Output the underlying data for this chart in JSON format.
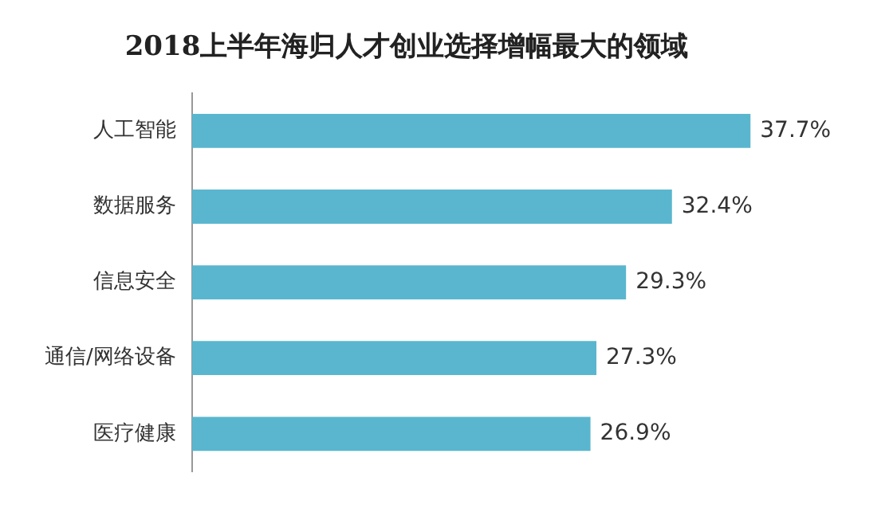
{
  "chart_data": {
    "type": "bar",
    "orientation": "horizontal",
    "title": "2018上半年海归人才创业选择增幅最大的领域",
    "categories": [
      "人工智能",
      "数据服务",
      "信息安全",
      "通信/网络设备",
      "医疗健康"
    ],
    "values": [
      37.7,
      32.4,
      29.3,
      27.3,
      26.9
    ],
    "color": "#5ab6cf",
    "value_labels": [
      "37.7%",
      "32.4%",
      "29.3%",
      "27.3%",
      "26.9%"
    ]
  }
}
